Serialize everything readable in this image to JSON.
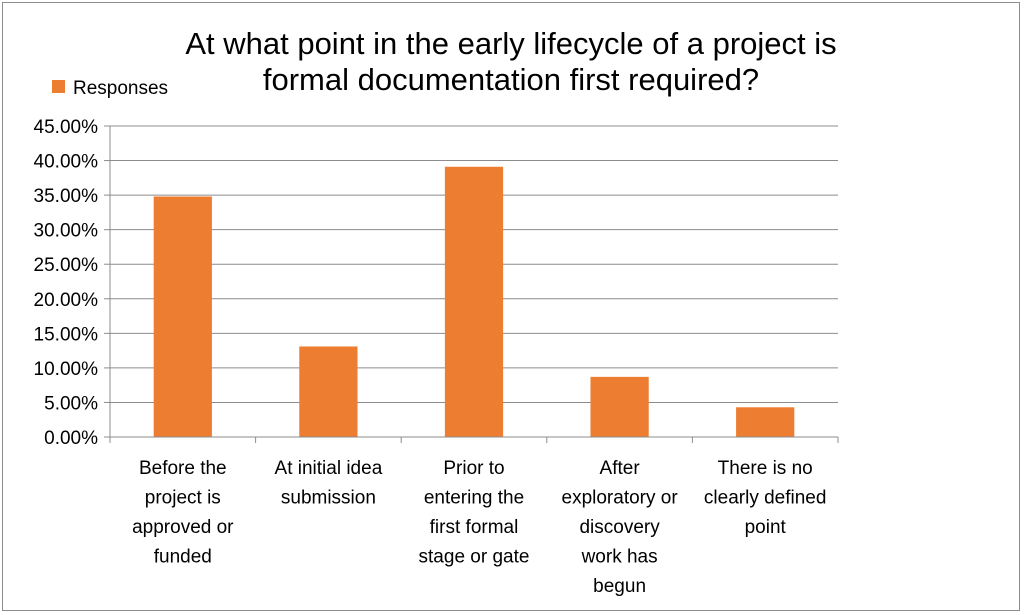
{
  "chart_data": {
    "type": "bar",
    "title_lines": [
      "At what point in the early lifecycle of a project is",
      "formal documentation first required?"
    ],
    "categories": [
      [
        "Before the",
        "project is",
        "approved or",
        "funded"
      ],
      [
        "At initial idea",
        "submission"
      ],
      [
        "Prior to",
        "entering the",
        "first formal",
        "stage or gate"
      ],
      [
        "After",
        "exploratory or",
        "discovery",
        "work has",
        "begun"
      ],
      [
        "There is no",
        "clearly defined",
        "point"
      ]
    ],
    "series": [
      {
        "name": "Responses",
        "color": "#ED7D31",
        "values": [
          34.8,
          13.1,
          39.1,
          8.7,
          4.3
        ]
      }
    ],
    "ylim": [
      0,
      45
    ],
    "yticks": [
      0,
      5,
      10,
      15,
      20,
      25,
      30,
      35,
      40,
      45
    ],
    "ytick_labels": [
      "0.00%",
      "5.00%",
      "10.00%",
      "15.00%",
      "20.00%",
      "25.00%",
      "30.00%",
      "35.00%",
      "40.00%",
      "45.00%"
    ],
    "grid": true,
    "legend_position": "top-left"
  }
}
